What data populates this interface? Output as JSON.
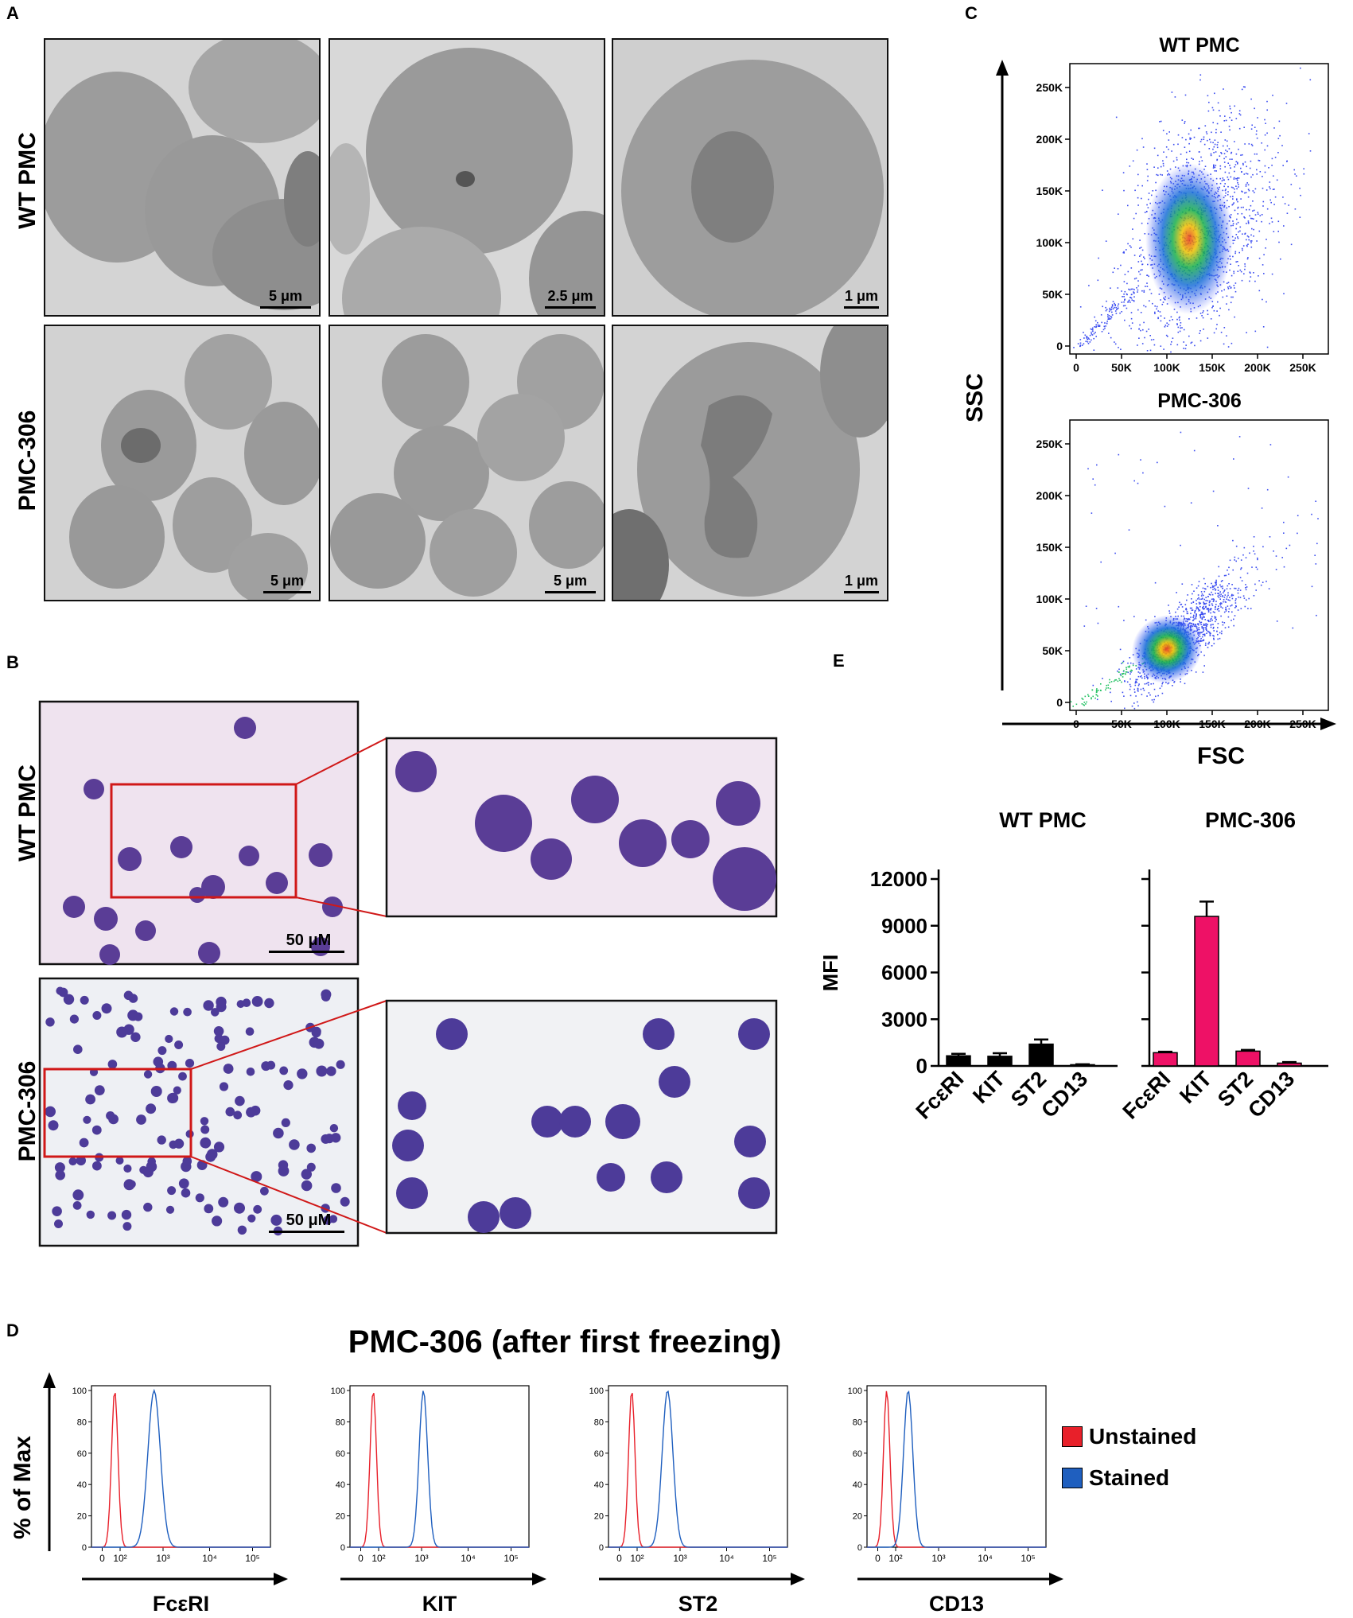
{
  "panels": {
    "A": "A",
    "B": "B",
    "C": "C",
    "D": "D",
    "E": "E"
  },
  "rows": {
    "wt": "WT PMC",
    "pmc": "PMC-306"
  },
  "panel_a": {
    "scalebars": [
      "5 μm",
      "2.5 μm",
      "1 μm",
      "5 μm",
      "5 μm",
      "1 μm"
    ]
  },
  "panel_b": {
    "scalebar": "50 μM"
  },
  "panel_c": {
    "titles": [
      "WT PMC",
      "PMC-306"
    ],
    "xlabel": "FSC",
    "ylabel": "SSC",
    "yticks": [
      "0",
      "50K",
      "100K",
      "150K",
      "200K",
      "250K"
    ],
    "xticks": [
      "0",
      "50K",
      "100K",
      "150K",
      "200K",
      "250K"
    ]
  },
  "panel_d": {
    "title": "PMC-306 (after first freezing)",
    "ylabel": "% of Max",
    "yticks": [
      "0",
      "20",
      "40",
      "60",
      "80",
      "100"
    ],
    "xticks": [
      "0",
      "10²",
      "10³",
      "10⁴",
      "10⁵"
    ],
    "markers": [
      "FcεRI",
      "KIT",
      "ST2",
      "CD13"
    ],
    "legend": [
      {
        "label": "Unstained",
        "color": "#e8202a"
      },
      {
        "label": "Stained",
        "color": "#1f5fbf"
      }
    ]
  },
  "chart_data": [
    {
      "type": "bar",
      "title": "WT PMC",
      "ylabel": "MFI",
      "categories": [
        "FcεRI",
        "KIT",
        "ST2",
        "CD13"
      ],
      "values": [
        650,
        620,
        1400,
        80
      ],
      "errors": [
        130,
        200,
        300,
        30
      ],
      "ylim": [
        0,
        12000
      ],
      "yticks": [
        "0",
        "3000",
        "6000",
        "9000",
        "12000"
      ],
      "color": "#000000"
    },
    {
      "type": "bar",
      "title": "PMC-306",
      "categories": [
        "FcεRI",
        "KIT",
        "ST2",
        "CD13"
      ],
      "values": [
        850,
        9600,
        950,
        180
      ],
      "errors": [
        60,
        950,
        80,
        70
      ],
      "ylim": [
        0,
        12000
      ],
      "color": "#ee1166"
    }
  ]
}
